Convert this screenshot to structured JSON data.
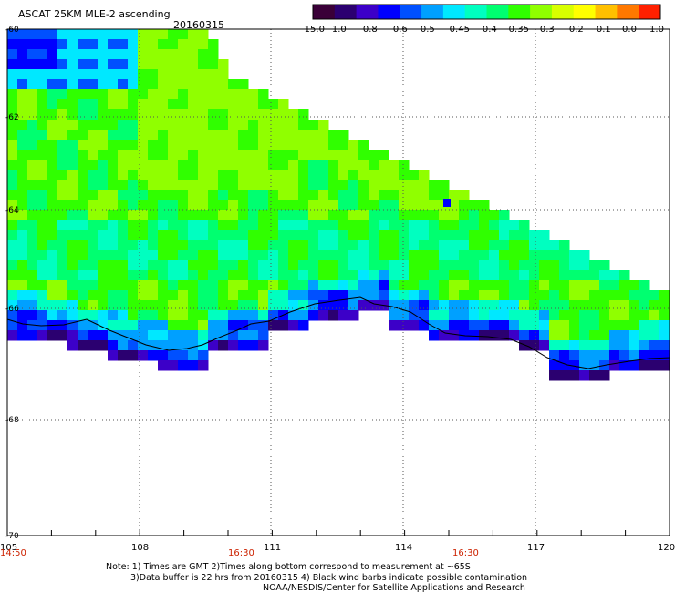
{
  "header": {
    "title": "ASCAT 25KM MLE-2 ascending",
    "date": "20160315"
  },
  "colorbar": {
    "colors": [
      "#3a0038",
      "#2b0070",
      "#3c00c8",
      "#0000ff",
      "#0050ff",
      "#00a0ff",
      "#00e8ff",
      "#00ffc0",
      "#00ff70",
      "#30ff00",
      "#90ff00",
      "#d8ff00",
      "#ffff00",
      "#ffc000",
      "#ff7800",
      "#ff2000"
    ],
    "labels": [
      "-15.0",
      "-1.0",
      "-0.8",
      "-0.6",
      "-0.5",
      "-0.45",
      "-0.4",
      "-0.35",
      "-0.3",
      "-0.2",
      "-0.1",
      "0.0",
      "1.0"
    ]
  },
  "axes": {
    "lat_labels": [
      "-60",
      "-62",
      "-64",
      "-66",
      "-68",
      "-70"
    ],
    "lon_labels": [
      "105",
      "108",
      "111",
      "114",
      "117",
      "120"
    ],
    "time_labels": [
      "14:50",
      "16:30",
      "16:30"
    ]
  },
  "notes": {
    "line1": "Note: 1) Times are GMT 2)Times along bottom correspond to measurement at ~65S",
    "line2": "3)Data buffer is 22 hrs from 20160315 4) Black wind barbs indicate possible contamination",
    "line3": "NOAA/NESDIS/Center for Satellite Applications and Research"
  }
}
